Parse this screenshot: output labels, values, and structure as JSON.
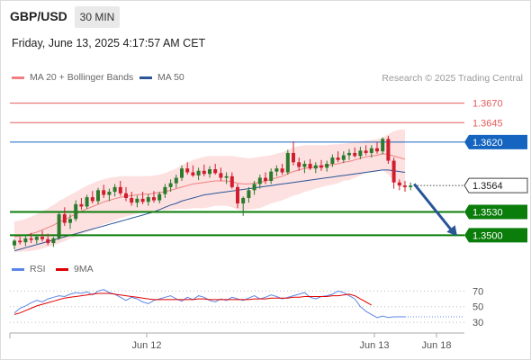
{
  "header": {
    "symbol": "GBP/USD",
    "timeframe": "30 MIN",
    "datetime": "Friday, June 13, 2025 4:17:57 AM CET"
  },
  "legend": {
    "ma20_bb": "MA 20 + Bollinger Bands",
    "ma50": "MA 50",
    "credit": "Research © 2025 Trading Central",
    "rsi": "RSI",
    "ma9": "9MA"
  },
  "colors": {
    "ma20": "#f08080",
    "bb_fill": "#fde0e0",
    "ma50": "#2a5597",
    "bull": "#2c7a2c",
    "bear": "#d01e2e",
    "support": "#0a7d0a",
    "resistance": "#e65c5c",
    "pivot": "#1565c0",
    "current": "#333333",
    "rsi": "#5b86e5",
    "ma9": "#e00000"
  },
  "chart_data": [
    {
      "type": "candlestick",
      "title": "GBP/USD 30 MIN",
      "x_ticks": [
        "Jun 12",
        "Jun 13",
        "Jun 18"
      ],
      "ylim": [
        1.3475,
        1.3687
      ],
      "levels": [
        {
          "value": 1.367,
          "label": "1.3670",
          "kind": "resistance"
        },
        {
          "value": 1.3645,
          "label": "1.3645",
          "kind": "resistance"
        },
        {
          "value": 1.362,
          "label": "1.3620",
          "kind": "pivot"
        },
        {
          "value": 1.3564,
          "label": "1.3564",
          "kind": "current"
        },
        {
          "value": 1.353,
          "label": "1.3530",
          "kind": "support"
        },
        {
          "value": 1.35,
          "label": "1.3500",
          "kind": "support"
        }
      ],
      "forecast_arrow": {
        "from": 1.3566,
        "to": 1.35
      },
      "ohlc": [
        [
          1.3487,
          1.3495,
          1.3482,
          1.3493
        ],
        [
          1.3493,
          1.3498,
          1.3488,
          1.3491
        ],
        [
          1.3491,
          1.3499,
          1.3486,
          1.3496
        ],
        [
          1.3496,
          1.3503,
          1.349,
          1.3494
        ],
        [
          1.3494,
          1.35,
          1.3489,
          1.3498
        ],
        [
          1.3498,
          1.3506,
          1.3492,
          1.3495
        ],
        [
          1.3495,
          1.3502,
          1.3487,
          1.349
        ],
        [
          1.349,
          1.3498,
          1.3485,
          1.3496
        ],
        [
          1.3496,
          1.353,
          1.3494,
          1.3527
        ],
        [
          1.3527,
          1.3536,
          1.3512,
          1.3516
        ],
        [
          1.3516,
          1.3527,
          1.3508,
          1.3521
        ],
        [
          1.3521,
          1.3545,
          1.3518,
          1.354
        ],
        [
          1.354,
          1.3548,
          1.3533,
          1.3537
        ],
        [
          1.3537,
          1.3552,
          1.3534,
          1.3549
        ],
        [
          1.3549,
          1.3557,
          1.3541,
          1.3544
        ],
        [
          1.3544,
          1.3561,
          1.354,
          1.3558
        ],
        [
          1.3558,
          1.3565,
          1.3548,
          1.3552
        ],
        [
          1.3552,
          1.356,
          1.3544,
          1.3556
        ],
        [
          1.3556,
          1.3566,
          1.355,
          1.3562
        ],
        [
          1.3562,
          1.357,
          1.3551,
          1.3554
        ],
        [
          1.3554,
          1.3562,
          1.3544,
          1.3548
        ],
        [
          1.3548,
          1.3556,
          1.3538,
          1.3542
        ],
        [
          1.3542,
          1.3551,
          1.3536,
          1.3547
        ],
        [
          1.3547,
          1.3556,
          1.354,
          1.3543
        ],
        [
          1.3543,
          1.3553,
          1.3538,
          1.3549
        ],
        [
          1.3549,
          1.3557,
          1.3542,
          1.3545
        ],
        [
          1.3545,
          1.3556,
          1.3541,
          1.3553
        ],
        [
          1.3553,
          1.3566,
          1.3548,
          1.3562
        ],
        [
          1.3562,
          1.3572,
          1.3556,
          1.3567
        ],
        [
          1.3567,
          1.3578,
          1.3561,
          1.3574
        ],
        [
          1.3574,
          1.359,
          1.357,
          1.3586
        ],
        [
          1.3586,
          1.3594,
          1.3578,
          1.3581
        ],
        [
          1.3581,
          1.359,
          1.3575,
          1.3577
        ],
        [
          1.3577,
          1.3587,
          1.3571,
          1.3583
        ],
        [
          1.3583,
          1.3591,
          1.3576,
          1.3579
        ],
        [
          1.3579,
          1.3589,
          1.3574,
          1.3585
        ],
        [
          1.3585,
          1.3592,
          1.3578,
          1.358
        ],
        [
          1.358,
          1.3587,
          1.357,
          1.3574
        ],
        [
          1.3574,
          1.3581,
          1.3566,
          1.3576
        ],
        [
          1.3576,
          1.3581,
          1.356,
          1.3562
        ],
        [
          1.3562,
          1.3566,
          1.3535,
          1.3541
        ],
        [
          1.3541,
          1.355,
          1.3525,
          1.3548
        ],
        [
          1.3548,
          1.3562,
          1.3542,
          1.3558
        ],
        [
          1.3558,
          1.357,
          1.3552,
          1.3566
        ],
        [
          1.3566,
          1.3578,
          1.356,
          1.3574
        ],
        [
          1.3574,
          1.3581,
          1.3566,
          1.357
        ],
        [
          1.357,
          1.3586,
          1.3566,
          1.3582
        ],
        [
          1.3582,
          1.359,
          1.3576,
          1.3586
        ],
        [
          1.3586,
          1.3592,
          1.3578,
          1.3581
        ],
        [
          1.3581,
          1.361,
          1.3578,
          1.3606
        ],
        [
          1.3606,
          1.3621,
          1.359,
          1.3594
        ],
        [
          1.3594,
          1.36,
          1.3583,
          1.3588
        ],
        [
          1.3588,
          1.3596,
          1.358,
          1.3592
        ],
        [
          1.3592,
          1.3598,
          1.3584,
          1.3586
        ],
        [
          1.3586,
          1.3594,
          1.358,
          1.359
        ],
        [
          1.359,
          1.3597,
          1.3583,
          1.3587
        ],
        [
          1.3587,
          1.3596,
          1.3582,
          1.3592
        ],
        [
          1.3592,
          1.3604,
          1.3588,
          1.36
        ],
        [
          1.36,
          1.3608,
          1.3594,
          1.3597
        ],
        [
          1.3597,
          1.3608,
          1.3593,
          1.3603
        ],
        [
          1.3603,
          1.3611,
          1.3597,
          1.3606
        ],
        [
          1.3606,
          1.3613,
          1.36,
          1.3602
        ],
        [
          1.3602,
          1.3614,
          1.3598,
          1.3609
        ],
        [
          1.3609,
          1.3616,
          1.3603,
          1.3606
        ],
        [
          1.3606,
          1.3616,
          1.36,
          1.3612
        ],
        [
          1.3612,
          1.362,
          1.3605,
          1.3608
        ],
        [
          1.3608,
          1.3626,
          1.3604,
          1.3624
        ],
        [
          1.3624,
          1.3628,
          1.3592,
          1.3596
        ],
        [
          1.3596,
          1.36,
          1.356,
          1.3568
        ],
        [
          1.3568,
          1.3572,
          1.3558,
          1.3564
        ],
        [
          1.3564,
          1.357,
          1.3556,
          1.3562
        ],
        [
          1.3562,
          1.3568,
          1.3558,
          1.3564
        ]
      ],
      "ma20": [
        1.3498,
        1.3499,
        1.35,
        1.3502,
        1.3504,
        1.3507,
        1.351,
        1.3513,
        1.3517,
        1.352,
        1.3524,
        1.3527,
        1.3531,
        1.3534,
        1.3537,
        1.354,
        1.3543,
        1.3545,
        1.3547,
        1.3549,
        1.355,
        1.3551,
        1.3552,
        1.3553,
        1.3553,
        1.3554,
        1.3555,
        1.3556,
        1.3558,
        1.356,
        1.3562,
        1.3564,
        1.3566,
        1.3567,
        1.3568,
        1.3569,
        1.357,
        1.357,
        1.357,
        1.3569,
        1.3567,
        1.3566,
        1.3566,
        1.3567,
        1.3568,
        1.357,
        1.3572,
        1.3574,
        1.3576,
        1.3579,
        1.3582,
        1.3584,
        1.3586,
        1.3587,
        1.3588,
        1.3589,
        1.359,
        1.3591,
        1.3592,
        1.3594,
        1.3595,
        1.3597,
        1.3599,
        1.3601,
        1.3602,
        1.3603,
        1.3605,
        1.3604,
        1.3602,
        1.36,
        1.3598
      ],
      "bb_upper": [
        1.3518,
        1.3519,
        1.3521,
        1.3524,
        1.3527,
        1.3531,
        1.3535,
        1.3539,
        1.3544,
        1.3548,
        1.3552,
        1.3556,
        1.356,
        1.3564,
        1.3567,
        1.357,
        1.3572,
        1.3574,
        1.3575,
        1.3576,
        1.3576,
        1.3576,
        1.3576,
        1.3576,
        1.3576,
        1.3577,
        1.3578,
        1.358,
        1.3583,
        1.3586,
        1.359,
        1.3594,
        1.3597,
        1.3599,
        1.3601,
        1.3602,
        1.3602,
        1.3602,
        1.3602,
        1.3602,
        1.3601,
        1.36,
        1.3599,
        1.36,
        1.3601,
        1.3602,
        1.3603,
        1.3605,
        1.3607,
        1.361,
        1.3613,
        1.3615,
        1.3616,
        1.3616,
        1.3616,
        1.3616,
        1.3616,
        1.3617,
        1.3617,
        1.3618,
        1.3619,
        1.362,
        1.3621,
        1.3622,
        1.3623,
        1.3624,
        1.3626,
        1.363,
        1.3634,
        1.3636,
        1.3636
      ],
      "bb_lower": [
        1.3478,
        1.3479,
        1.3479,
        1.348,
        1.3481,
        1.3483,
        1.3485,
        1.3487,
        1.349,
        1.3492,
        1.3496,
        1.3498,
        1.3502,
        1.3504,
        1.3507,
        1.351,
        1.3514,
        1.3516,
        1.3519,
        1.3522,
        1.3524,
        1.3526,
        1.3528,
        1.353,
        1.353,
        1.3531,
        1.3532,
        1.3532,
        1.3533,
        1.3534,
        1.3534,
        1.3534,
        1.3535,
        1.3535,
        1.3535,
        1.3536,
        1.3538,
        1.3538,
        1.3538,
        1.3536,
        1.3533,
        1.3532,
        1.3533,
        1.3534,
        1.3535,
        1.3538,
        1.3541,
        1.3543,
        1.3545,
        1.3548,
        1.3551,
        1.3553,
        1.3556,
        1.3558,
        1.356,
        1.3562,
        1.3564,
        1.3565,
        1.3567,
        1.357,
        1.3571,
        1.3574,
        1.3577,
        1.358,
        1.3581,
        1.3582,
        1.3584,
        1.3578,
        1.357,
        1.3564,
        1.356
      ],
      "ma50": [
        1.348,
        1.3482,
        1.3484,
        1.3486,
        1.3488,
        1.349,
        1.3492,
        1.3494,
        1.3496,
        1.3498,
        1.35,
        1.3502,
        1.3504,
        1.3506,
        1.3508,
        1.351,
        1.3512,
        1.3514,
        1.3516,
        1.3518,
        1.352,
        1.3522,
        1.3524,
        1.3526,
        1.3528,
        1.353,
        1.3533,
        1.3536,
        1.3539,
        1.3541,
        1.3544,
        1.3546,
        1.3548,
        1.355,
        1.3552,
        1.3553,
        1.3554,
        1.3555,
        1.3556,
        1.3557,
        1.3558,
        1.3559,
        1.356,
        1.3561,
        1.3562,
        1.3563,
        1.3564,
        1.3565,
        1.3566,
        1.3567,
        1.3568,
        1.3569,
        1.357,
        1.3571,
        1.3572,
        1.3573,
        1.3574,
        1.3575,
        1.3576,
        1.3577,
        1.3578,
        1.3579,
        1.358,
        1.3581,
        1.3582,
        1.3583,
        1.3584,
        1.3584,
        1.3583,
        1.3582,
        1.3581
      ]
    },
    {
      "type": "line",
      "title": "RSI",
      "y_ticks": [
        "70",
        "50",
        "30"
      ],
      "ylim": [
        22,
        82
      ],
      "series": [
        {
          "name": "RSI",
          "values": [
            42,
            48,
            51,
            55,
            58,
            56,
            60,
            62,
            64,
            63,
            66,
            68,
            67,
            69,
            65,
            70,
            72,
            68,
            66,
            62,
            58,
            62,
            60,
            56,
            54,
            58,
            60,
            62,
            64,
            60,
            57,
            62,
            59,
            64,
            62,
            58,
            56,
            60,
            58,
            62,
            60,
            58,
            61,
            64,
            60,
            62,
            65,
            63,
            60,
            62,
            64,
            66,
            68,
            62,
            60,
            63,
            64,
            66,
            70,
            68,
            64,
            60,
            50,
            44,
            40,
            36,
            38,
            36,
            37,
            37,
            37
          ]
        },
        {
          "name": "9MA",
          "values": [
            40,
            42,
            45,
            48,
            51,
            53,
            55,
            57,
            59,
            61,
            62,
            63,
            64,
            65,
            66,
            67,
            67,
            67,
            66,
            65,
            64,
            63,
            62,
            61,
            60,
            59,
            59,
            59,
            59,
            59,
            59,
            59,
            59,
            60,
            60,
            59,
            59,
            59,
            59,
            59,
            59,
            59,
            59,
            60,
            60,
            60,
            61,
            61,
            61,
            61,
            62,
            62,
            63,
            63,
            63,
            63,
            63,
            64,
            64,
            65,
            66,
            64,
            60,
            56,
            52
          ]
        }
      ]
    }
  ]
}
